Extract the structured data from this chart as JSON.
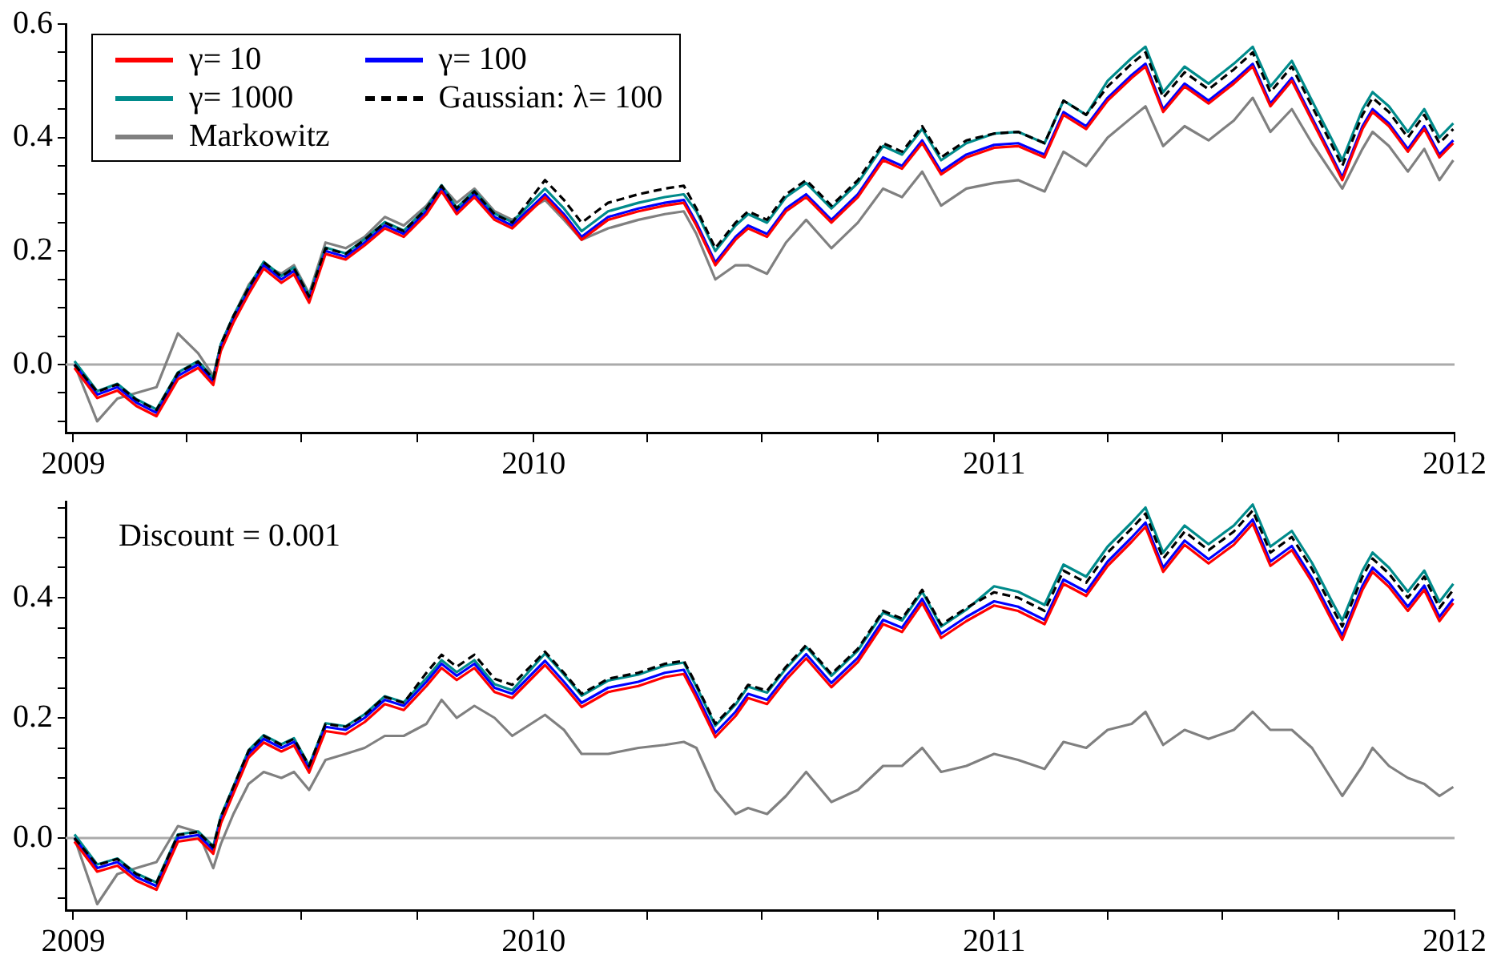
{
  "chart_data": [
    {
      "type": "line",
      "legend": "top left",
      "marker": "none",
      "grid": false,
      "x": [
        "2009-01-02",
        "2009-01-20",
        "2009-02-05",
        "2009-02-20",
        "2009-03-08",
        "2009-03-25",
        "2009-04-10",
        "2009-04-22",
        "2009-04-28",
        "2009-05-08",
        "2009-05-20",
        "2009-06-01",
        "2009-06-15",
        "2009-06-25",
        "2009-07-07",
        "2009-07-20",
        "2009-08-05",
        "2009-08-20",
        "2009-09-05",
        "2009-09-20",
        "2009-10-08",
        "2009-10-20",
        "2009-11-01",
        "2009-11-15",
        "2009-12-01",
        "2009-12-15",
        "2010-01-10",
        "2010-01-25",
        "2010-02-08",
        "2010-03-01",
        "2010-03-25",
        "2010-04-15",
        "2010-04-30",
        "2010-05-10",
        "2010-05-25",
        "2010-06-10",
        "2010-06-20",
        "2010-07-05",
        "2010-07-20",
        "2010-08-05",
        "2010-08-25",
        "2010-09-15",
        "2010-10-05",
        "2010-10-20",
        "2010-11-05",
        "2010-11-20",
        "2010-12-10",
        "2011-01-01",
        "2011-01-20",
        "2011-02-10",
        "2011-02-25",
        "2011-03-15",
        "2011-04-01",
        "2011-04-20",
        "2011-05-01",
        "2011-05-15",
        "2011-06-01",
        "2011-06-20",
        "2011-07-10",
        "2011-07-25",
        "2011-08-08",
        "2011-08-25",
        "2011-09-10",
        "2011-09-25",
        "2011-10-04",
        "2011-10-20",
        "2011-10-28",
        "2011-11-10",
        "2011-11-25",
        "2011-12-08",
        "2011-12-20",
        "2011-12-31"
      ],
      "xlim": [
        "2008-12-26",
        "2012-01-01"
      ],
      "xticks": [
        "2009",
        {
          "value": "2009-04",
          "label": null
        },
        {
          "value": "2009-07",
          "label": null
        },
        {
          "value": "2009-10",
          "label": null
        },
        "2010",
        {
          "value": "2010-04",
          "label": null
        },
        {
          "value": "2010-07",
          "label": null
        },
        {
          "value": "2010-10",
          "label": null
        },
        "2011",
        {
          "value": "2011-04",
          "label": null
        },
        {
          "value": "2011-07",
          "label": null
        },
        {
          "value": "2011-10",
          "label": null
        },
        "2012"
      ],
      "ylim": [
        -0.12,
        0.6
      ],
      "yticks": [
        {
          "value": -0.1,
          "label": null
        },
        {
          "value": -0.05,
          "label": null
        },
        {
          "value": 0,
          "label": "0.0"
        },
        {
          "value": 0.05,
          "label": null
        },
        {
          "value": 0.1,
          "label": null
        },
        {
          "value": 0.15,
          "label": null
        },
        0.2,
        {
          "value": 0.25,
          "label": null
        },
        {
          "value": 0.3,
          "label": null
        },
        {
          "value": 0.35,
          "label": null
        },
        0.4,
        {
          "value": 0.45,
          "label": null
        },
        {
          "value": 0.5,
          "label": null
        },
        {
          "value": 0.55,
          "label": null
        },
        0.6
      ],
      "ref_lines": [
        {
          "axis": "y",
          "value": 0,
          "color": "#aaaaaa"
        }
      ],
      "series": [
        {
          "name": "γ= 10",
          "color": "#ff0000",
          "values": [
            -0.006,
            -0.059,
            -0.046,
            -0.073,
            -0.091,
            -0.026,
            -0.006,
            -0.036,
            0.024,
            0.074,
            0.124,
            0.169,
            0.144,
            0.159,
            0.109,
            0.195,
            0.185,
            0.21,
            0.24,
            0.225,
            0.265,
            0.305,
            0.265,
            0.295,
            0.255,
            0.24,
            0.295,
            0.26,
            0.22,
            0.255,
            0.27,
            0.28,
            0.285,
            0.245,
            0.175,
            0.22,
            0.24,
            0.225,
            0.27,
            0.295,
            0.25,
            0.295,
            0.36,
            0.345,
            0.39,
            0.335,
            0.365,
            0.382,
            0.385,
            0.365,
            0.44,
            0.415,
            0.465,
            0.505,
            0.525,
            0.445,
            0.49,
            0.46,
            0.495,
            0.525,
            0.455,
            0.5,
            0.43,
            0.365,
            0.325,
            0.415,
            0.445,
            0.42,
            0.375,
            0.415,
            0.365,
            0.39
          ]
        },
        {
          "name": "γ= 100",
          "color": "#0000ff",
          "values": [
            0,
            -0.053,
            -0.04,
            -0.067,
            -0.085,
            -0.02,
            0,
            -0.03,
            0.03,
            0.08,
            0.13,
            0.175,
            0.15,
            0.165,
            0.115,
            0.2,
            0.19,
            0.215,
            0.245,
            0.23,
            0.27,
            0.31,
            0.27,
            0.3,
            0.26,
            0.245,
            0.3,
            0.265,
            0.225,
            0.26,
            0.275,
            0.285,
            0.29,
            0.25,
            0.18,
            0.225,
            0.245,
            0.23,
            0.275,
            0.3,
            0.255,
            0.3,
            0.365,
            0.35,
            0.395,
            0.34,
            0.37,
            0.387,
            0.39,
            0.37,
            0.445,
            0.42,
            0.47,
            0.51,
            0.53,
            0.45,
            0.495,
            0.465,
            0.5,
            0.53,
            0.46,
            0.505,
            0.435,
            0.37,
            0.33,
            0.42,
            0.45,
            0.425,
            0.38,
            0.42,
            0.37,
            0.395
          ]
        },
        {
          "name": "γ= 1000",
          "color": "#008b8b",
          "values": [
            0.006,
            -0.047,
            -0.034,
            -0.061,
            -0.079,
            -0.014,
            0.006,
            -0.024,
            0.036,
            0.086,
            0.136,
            0.181,
            0.156,
            0.171,
            0.121,
            0.206,
            0.196,
            0.221,
            0.251,
            0.236,
            0.276,
            0.316,
            0.276,
            0.306,
            0.266,
            0.251,
            0.31,
            0.275,
            0.235,
            0.27,
            0.285,
            0.295,
            0.3,
            0.27,
            0.2,
            0.245,
            0.265,
            0.25,
            0.295,
            0.32,
            0.275,
            0.32,
            0.385,
            0.37,
            0.415,
            0.36,
            0.39,
            0.407,
            0.41,
            0.39,
            0.465,
            0.44,
            0.5,
            0.54,
            0.56,
            0.48,
            0.525,
            0.495,
            0.53,
            0.56,
            0.49,
            0.535,
            0.465,
            0.4,
            0.36,
            0.45,
            0.48,
            0.455,
            0.41,
            0.45,
            0.4,
            0.425
          ]
        },
        {
          "name": "Gaussian: λ= 100",
          "color": "#000000",
          "line_style": "dashed",
          "values": [
            0,
            -0.048,
            -0.035,
            -0.062,
            -0.08,
            -0.015,
            0.005,
            -0.025,
            0.035,
            0.085,
            0.135,
            0.18,
            0.155,
            0.17,
            0.12,
            0.205,
            0.195,
            0.22,
            0.25,
            0.235,
            0.275,
            0.315,
            0.275,
            0.305,
            0.265,
            0.25,
            0.325,
            0.29,
            0.25,
            0.285,
            0.3,
            0.31,
            0.315,
            0.275,
            0.205,
            0.25,
            0.27,
            0.255,
            0.3,
            0.325,
            0.28,
            0.325,
            0.39,
            0.375,
            0.42,
            0.365,
            0.395,
            0.407,
            0.41,
            0.39,
            0.465,
            0.44,
            0.49,
            0.53,
            0.55,
            0.47,
            0.515,
            0.485,
            0.52,
            0.55,
            0.48,
            0.525,
            0.455,
            0.39,
            0.35,
            0.44,
            0.47,
            0.445,
            0.4,
            0.44,
            0.39,
            0.415
          ]
        },
        {
          "name": "Markowitz",
          "color": "#808080",
          "values": [
            0,
            -0.1,
            -0.06,
            -0.05,
            -0.04,
            0.055,
            0.02,
            -0.02,
            0.035,
            0.085,
            0.14,
            0.175,
            0.16,
            0.175,
            0.125,
            0.215,
            0.205,
            0.225,
            0.26,
            0.245,
            0.28,
            0.315,
            0.285,
            0.31,
            0.27,
            0.255,
            0.29,
            0.255,
            0.22,
            0.24,
            0.255,
            0.265,
            0.27,
            0.23,
            0.15,
            0.175,
            0.175,
            0.16,
            0.215,
            0.255,
            0.205,
            0.25,
            0.31,
            0.295,
            0.34,
            0.28,
            0.31,
            0.32,
            0.325,
            0.305,
            0.375,
            0.35,
            0.4,
            0.435,
            0.455,
            0.385,
            0.42,
            0.395,
            0.43,
            0.47,
            0.41,
            0.45,
            0.39,
            0.34,
            0.31,
            0.38,
            0.41,
            0.385,
            0.34,
            0.38,
            0.325,
            0.36
          ]
        }
      ]
    },
    {
      "type": "line",
      "marker": "none",
      "grid": false,
      "annotations": [
        "Discount = 0.001"
      ],
      "x": [
        "2009-01-02",
        "2009-01-20",
        "2009-02-05",
        "2009-02-20",
        "2009-03-08",
        "2009-03-25",
        "2009-04-10",
        "2009-04-22",
        "2009-04-28",
        "2009-05-08",
        "2009-05-20",
        "2009-06-01",
        "2009-06-15",
        "2009-06-25",
        "2009-07-07",
        "2009-07-20",
        "2009-08-05",
        "2009-08-20",
        "2009-09-05",
        "2009-09-20",
        "2009-10-08",
        "2009-10-20",
        "2009-11-01",
        "2009-11-15",
        "2009-12-01",
        "2009-12-15",
        "2010-01-10",
        "2010-01-25",
        "2010-02-08",
        "2010-03-01",
        "2010-03-25",
        "2010-04-15",
        "2010-04-30",
        "2010-05-10",
        "2010-05-25",
        "2010-06-10",
        "2010-06-20",
        "2010-07-05",
        "2010-07-20",
        "2010-08-05",
        "2010-08-25",
        "2010-09-15",
        "2010-10-05",
        "2010-10-20",
        "2010-11-05",
        "2010-11-20",
        "2010-12-10",
        "2011-01-01",
        "2011-01-20",
        "2011-02-10",
        "2011-02-25",
        "2011-03-15",
        "2011-04-01",
        "2011-04-20",
        "2011-05-01",
        "2011-05-15",
        "2011-06-01",
        "2011-06-20",
        "2011-07-10",
        "2011-07-25",
        "2011-08-08",
        "2011-08-25",
        "2011-09-10",
        "2011-09-25",
        "2011-10-04",
        "2011-10-20",
        "2011-10-28",
        "2011-11-10",
        "2011-11-25",
        "2011-12-08",
        "2011-12-20",
        "2011-12-31"
      ],
      "xlim": [
        "2008-12-26",
        "2012-01-01"
      ],
      "xticks": [
        "2009",
        {
          "value": "2009-04",
          "label": null
        },
        {
          "value": "2009-07",
          "label": null
        },
        {
          "value": "2009-10",
          "label": null
        },
        "2010",
        {
          "value": "2010-04",
          "label": null
        },
        {
          "value": "2010-07",
          "label": null
        },
        {
          "value": "2010-10",
          "label": null
        },
        "2011",
        {
          "value": "2011-04",
          "label": null
        },
        {
          "value": "2011-07",
          "label": null
        },
        {
          "value": "2011-10",
          "label": null
        },
        "2012"
      ],
      "ylim": [
        -0.12,
        0.56
      ],
      "yticks": [
        {
          "value": -0.1,
          "label": null
        },
        {
          "value": -0.05,
          "label": null
        },
        {
          "value": 0,
          "label": "0.0"
        },
        {
          "value": 0.05,
          "label": null
        },
        {
          "value": 0.1,
          "label": null
        },
        {
          "value": 0.15,
          "label": null
        },
        0.2,
        {
          "value": 0.25,
          "label": null
        },
        {
          "value": 0.3,
          "label": null
        },
        {
          "value": 0.35,
          "label": null
        },
        0.4,
        {
          "value": 0.45,
          "label": null
        },
        {
          "value": 0.5,
          "label": null
        },
        {
          "value": 0.55,
          "label": null
        }
      ],
      "ref_lines": [
        {
          "axis": "y",
          "value": 0,
          "color": "#aaaaaa"
        }
      ],
      "series": [
        {
          "color": "#ff0000",
          "values": [
            -0.006,
            -0.056,
            -0.046,
            -0.071,
            -0.086,
            -0.006,
            -0.001,
            -0.026,
            0.024,
            0.074,
            0.134,
            0.159,
            0.144,
            0.154,
            0.109,
            0.178,
            0.173,
            0.193,
            0.223,
            0.213,
            0.253,
            0.283,
            0.263,
            0.283,
            0.243,
            0.233,
            0.288,
            0.253,
            0.218,
            0.243,
            0.253,
            0.268,
            0.273,
            0.233,
            0.168,
            0.203,
            0.233,
            0.223,
            0.263,
            0.299,
            0.251,
            0.293,
            0.356,
            0.343,
            0.391,
            0.333,
            0.361,
            0.387,
            0.378,
            0.356,
            0.423,
            0.403,
            0.453,
            0.493,
            0.518,
            0.443,
            0.488,
            0.457,
            0.488,
            0.523,
            0.453,
            0.479,
            0.426,
            0.365,
            0.33,
            0.413,
            0.443,
            0.418,
            0.378,
            0.413,
            0.361,
            0.391
          ]
        },
        {
          "color": "#0000ff",
          "values": [
            0,
            -0.05,
            -0.04,
            -0.065,
            -0.08,
            0,
            0.005,
            -0.02,
            0.03,
            0.08,
            0.14,
            0.165,
            0.15,
            0.16,
            0.115,
            0.185,
            0.18,
            0.2,
            0.23,
            0.22,
            0.26,
            0.29,
            0.27,
            0.29,
            0.25,
            0.24,
            0.295,
            0.26,
            0.225,
            0.25,
            0.26,
            0.275,
            0.28,
            0.24,
            0.175,
            0.21,
            0.24,
            0.23,
            0.27,
            0.306,
            0.258,
            0.3,
            0.363,
            0.35,
            0.398,
            0.34,
            0.368,
            0.394,
            0.385,
            0.363,
            0.43,
            0.41,
            0.46,
            0.5,
            0.525,
            0.45,
            0.495,
            0.464,
            0.495,
            0.53,
            0.46,
            0.486,
            0.433,
            0.372,
            0.337,
            0.42,
            0.45,
            0.425,
            0.385,
            0.42,
            0.368,
            0.398
          ]
        },
        {
          "color": "#008b8b",
          "values": [
            0.006,
            -0.044,
            -0.034,
            -0.059,
            -0.074,
            0.006,
            0.011,
            -0.014,
            0.036,
            0.086,
            0.146,
            0.171,
            0.156,
            0.166,
            0.121,
            0.191,
            0.186,
            0.206,
            0.236,
            0.226,
            0.266,
            0.296,
            0.276,
            0.296,
            0.256,
            0.246,
            0.307,
            0.272,
            0.237,
            0.262,
            0.272,
            0.287,
            0.292,
            0.252,
            0.187,
            0.222,
            0.252,
            0.242,
            0.282,
            0.318,
            0.27,
            0.312,
            0.375,
            0.362,
            0.41,
            0.352,
            0.38,
            0.419,
            0.41,
            0.388,
            0.455,
            0.435,
            0.485,
            0.525,
            0.55,
            0.475,
            0.52,
            0.489,
            0.52,
            0.555,
            0.485,
            0.511,
            0.458,
            0.397,
            0.362,
            0.445,
            0.475,
            0.45,
            0.41,
            0.445,
            0.393,
            0.423
          ]
        },
        {
          "color": "#000000",
          "line_style": "dashed",
          "values": [
            0,
            -0.045,
            -0.035,
            -0.06,
            -0.075,
            0.005,
            0.01,
            -0.015,
            0.035,
            0.085,
            0.145,
            0.17,
            0.155,
            0.165,
            0.12,
            0.19,
            0.185,
            0.205,
            0.235,
            0.225,
            0.275,
            0.305,
            0.285,
            0.305,
            0.265,
            0.255,
            0.31,
            0.275,
            0.24,
            0.265,
            0.275,
            0.29,
            0.295,
            0.255,
            0.19,
            0.225,
            0.255,
            0.245,
            0.285,
            0.321,
            0.273,
            0.315,
            0.378,
            0.365,
            0.413,
            0.355,
            0.383,
            0.409,
            0.4,
            0.378,
            0.445,
            0.425,
            0.475,
            0.515,
            0.54,
            0.465,
            0.51,
            0.479,
            0.51,
            0.545,
            0.475,
            0.501,
            0.448,
            0.387,
            0.352,
            0.435,
            0.465,
            0.44,
            0.4,
            0.435,
            0.383,
            0.413
          ]
        },
        {
          "color": "#808080",
          "values": [
            0,
            -0.11,
            -0.06,
            -0.05,
            -0.04,
            0.02,
            0.01,
            -0.05,
            -0.01,
            0.04,
            0.09,
            0.11,
            0.1,
            0.11,
            0.08,
            0.13,
            0.14,
            0.15,
            0.17,
            0.17,
            0.19,
            0.23,
            0.2,
            0.22,
            0.2,
            0.17,
            0.205,
            0.18,
            0.14,
            0.14,
            0.15,
            0.155,
            0.16,
            0.15,
            0.08,
            0.04,
            0.05,
            0.04,
            0.07,
            0.11,
            0.06,
            0.08,
            0.12,
            0.12,
            0.15,
            0.11,
            0.12,
            0.14,
            0.13,
            0.115,
            0.16,
            0.15,
            0.18,
            0.19,
            0.21,
            0.155,
            0.18,
            0.165,
            0.18,
            0.21,
            0.18,
            0.18,
            0.15,
            0.1,
            0.07,
            0.12,
            0.15,
            0.12,
            0.1,
            0.09,
            0.07,
            0.085
          ]
        }
      ]
    }
  ]
}
